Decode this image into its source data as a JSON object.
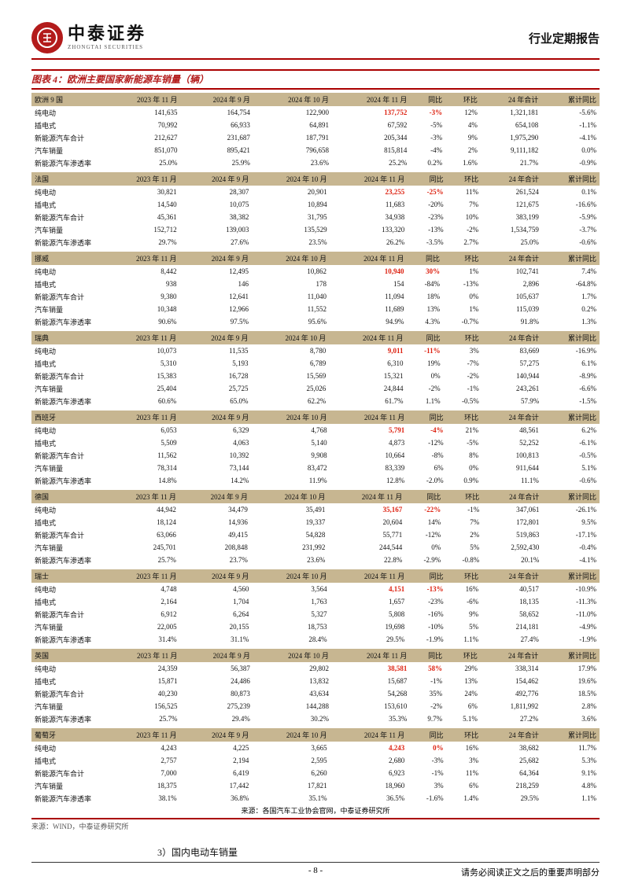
{
  "header": {
    "logo_cn": "中泰证券",
    "logo_en": "ZHONGTAI SECURITIES",
    "report_type": "行业定期报告"
  },
  "chart_title": "图表 4：欧洲主要国家新能源车销量（辆）",
  "columns_suffix": [
    "",
    "2023 年 11 月",
    "2024 年 9 月",
    "2024 年 10 月",
    "2024 年 11 月",
    "同比",
    "环比",
    "24 年合计",
    "累计同比"
  ],
  "row_labels": [
    "纯电动",
    "插电式",
    "新能源汽车合计",
    "汽车销量",
    "新能源汽车渗透率"
  ],
  "tables": [
    {
      "name": "欧洲 9 国",
      "rows": [
        [
          "141,635",
          "164,754",
          "122,900",
          {
            "v": "137,752",
            "c": "red"
          },
          {
            "v": "-3%",
            "c": "red"
          },
          "12%",
          "1,321,181",
          "-5.6%"
        ],
        [
          "70,992",
          "66,933",
          "64,891",
          "67,592",
          "-5%",
          "4%",
          "654,108",
          "-1.1%"
        ],
        [
          "212,627",
          "231,687",
          "187,791",
          "205,344",
          "-3%",
          "9%",
          "1,975,290",
          "-4.1%"
        ],
        [
          "851,070",
          "895,421",
          "796,658",
          "815,814",
          "-4%",
          "2%",
          "9,111,182",
          "0.0%"
        ],
        [
          "25.0%",
          "25.9%",
          "23.6%",
          "25.2%",
          "0.2%",
          "1.6%",
          "21.7%",
          "-0.9%"
        ]
      ]
    },
    {
      "name": "法国",
      "rows": [
        [
          "30,821",
          "28,307",
          "20,901",
          {
            "v": "23,255",
            "c": "red"
          },
          {
            "v": "-25%",
            "c": "red"
          },
          "11%",
          "261,524",
          "0.1%"
        ],
        [
          "14,540",
          "10,075",
          "10,894",
          "11,683",
          "-20%",
          "7%",
          "121,675",
          "-16.6%"
        ],
        [
          "45,361",
          "38,382",
          "31,795",
          "34,938",
          "-23%",
          "10%",
          "383,199",
          "-5.9%"
        ],
        [
          "152,712",
          "139,003",
          "135,529",
          "133,320",
          "-13%",
          "-2%",
          "1,534,759",
          "-3.7%"
        ],
        [
          "29.7%",
          "27.6%",
          "23.5%",
          "26.2%",
          "-3.5%",
          "2.7%",
          "25.0%",
          "-0.6%"
        ]
      ]
    },
    {
      "name": "挪威",
      "rows": [
        [
          "8,442",
          "12,495",
          "10,862",
          {
            "v": "10,940",
            "c": "red"
          },
          {
            "v": "30%",
            "c": "red"
          },
          "1%",
          "102,741",
          "7.4%"
        ],
        [
          "938",
          "146",
          "178",
          "154",
          "-84%",
          "-13%",
          "2,896",
          "-64.8%"
        ],
        [
          "9,380",
          "12,641",
          "11,040",
          "11,094",
          "18%",
          "0%",
          "105,637",
          "1.7%"
        ],
        [
          "10,348",
          "12,966",
          "11,552",
          "11,689",
          "13%",
          "1%",
          "115,039",
          "0.2%"
        ],
        [
          "90.6%",
          "97.5%",
          "95.6%",
          "94.9%",
          "4.3%",
          "-0.7%",
          "91.8%",
          "1.3%"
        ]
      ]
    },
    {
      "name": "瑞典",
      "rows": [
        [
          "10,073",
          "11,535",
          "8,780",
          {
            "v": "9,011",
            "c": "red"
          },
          {
            "v": "-11%",
            "c": "red"
          },
          "3%",
          "83,669",
          "-16.9%"
        ],
        [
          "5,310",
          "5,193",
          "6,789",
          "6,310",
          "19%",
          "-7%",
          "57,275",
          "6.1%"
        ],
        [
          "15,383",
          "16,728",
          "15,569",
          "15,321",
          "0%",
          "-2%",
          "140,944",
          "-8.9%"
        ],
        [
          "25,404",
          "25,725",
          "25,026",
          "24,844",
          "-2%",
          "-1%",
          "243,261",
          "-6.6%"
        ],
        [
          "60.6%",
          "65.0%",
          "62.2%",
          "61.7%",
          "1.1%",
          "-0.5%",
          "57.9%",
          "-1.5%"
        ]
      ]
    },
    {
      "name": "西班牙",
      "rows": [
        [
          "6,053",
          "6,329",
          "4,768",
          {
            "v": "5,791",
            "c": "red"
          },
          {
            "v": "-4%",
            "c": "red"
          },
          "21%",
          "48,561",
          "6.2%"
        ],
        [
          "5,509",
          "4,063",
          "5,140",
          "4,873",
          "-12%",
          "-5%",
          "52,252",
          "-6.1%"
        ],
        [
          "11,562",
          "10,392",
          "9,908",
          "10,664",
          "-8%",
          "8%",
          "100,813",
          "-0.5%"
        ],
        [
          "78,314",
          "73,144",
          "83,472",
          "83,339",
          "6%",
          "0%",
          "911,644",
          "5.1%"
        ],
        [
          "14.8%",
          "14.2%",
          "11.9%",
          "12.8%",
          "-2.0%",
          "0.9%",
          "11.1%",
          "-0.6%"
        ]
      ]
    },
    {
      "name": "德国",
      "rows": [
        [
          "44,942",
          "34,479",
          "35,491",
          {
            "v": "35,167",
            "c": "red"
          },
          {
            "v": "-22%",
            "c": "red"
          },
          "-1%",
          "347,061",
          "-26.1%"
        ],
        [
          "18,124",
          "14,936",
          "19,337",
          "20,604",
          "14%",
          "7%",
          "172,801",
          "9.5%"
        ],
        [
          "63,066",
          "49,415",
          "54,828",
          "55,771",
          "-12%",
          "2%",
          "519,863",
          "-17.1%"
        ],
        [
          "245,701",
          "208,848",
          "231,992",
          "244,544",
          "0%",
          "5%",
          "2,592,430",
          "-0.4%"
        ],
        [
          "25.7%",
          "23.7%",
          "23.6%",
          "22.8%",
          "-2.9%",
          "-0.8%",
          "20.1%",
          "-4.1%"
        ]
      ]
    },
    {
      "name": "瑞士",
      "rows": [
        [
          "4,748",
          "4,560",
          "3,564",
          {
            "v": "4,151",
            "c": "red"
          },
          {
            "v": "-13%",
            "c": "red"
          },
          "16%",
          "40,517",
          "-10.9%"
        ],
        [
          "2,164",
          "1,704",
          "1,763",
          "1,657",
          "-23%",
          "-6%",
          "18,135",
          "-11.3%"
        ],
        [
          "6,912",
          "6,264",
          "5,327",
          "5,808",
          "-16%",
          "9%",
          "58,652",
          "-11.0%"
        ],
        [
          "22,005",
          "20,155",
          "18,753",
          "19,698",
          "-10%",
          "5%",
          "214,181",
          "-4.9%"
        ],
        [
          "31.4%",
          "31.1%",
          "28.4%",
          "29.5%",
          "-1.9%",
          "1.1%",
          "27.4%",
          "-1.9%"
        ]
      ]
    },
    {
      "name": "英国",
      "rows": [
        [
          "24,359",
          "56,387",
          "29,802",
          {
            "v": "38,581",
            "c": "red"
          },
          {
            "v": "58%",
            "c": "red"
          },
          "29%",
          "338,314",
          "17.9%"
        ],
        [
          "15,871",
          "24,486",
          "13,832",
          "15,687",
          "-1%",
          "13%",
          "154,462",
          "19.6%"
        ],
        [
          "40,230",
          "80,873",
          "43,634",
          "54,268",
          "35%",
          "24%",
          "492,776",
          "18.5%"
        ],
        [
          "156,525",
          "275,239",
          "144,288",
          "153,610",
          "-2%",
          "6%",
          "1,811,992",
          "2.8%"
        ],
        [
          "25.7%",
          "29.4%",
          "30.2%",
          "35.3%",
          "9.7%",
          "5.1%",
          "27.2%",
          "3.6%"
        ]
      ]
    },
    {
      "name": "葡萄牙",
      "rows": [
        [
          "4,243",
          "4,225",
          "3,665",
          {
            "v": "4,243",
            "c": "red"
          },
          {
            "v": "0%",
            "c": "red"
          },
          "16%",
          "38,682",
          "11.7%"
        ],
        [
          "2,757",
          "2,194",
          "2,595",
          "2,680",
          "-3%",
          "3%",
          "25,682",
          "5.3%"
        ],
        [
          "7,000",
          "6,419",
          "6,260",
          "6,923",
          "-1%",
          "11%",
          "64,364",
          "9.1%"
        ],
        [
          "18,375",
          "17,442",
          "17,821",
          "18,960",
          "3%",
          "6%",
          "218,259",
          "4.8%"
        ],
        [
          "38.1%",
          "36.8%",
          "35.1%",
          "36.5%",
          "-1.6%",
          "1.4%",
          "29.5%",
          "1.1%"
        ]
      ]
    }
  ],
  "source_center": "来源：各国汽车工业协会官网，中泰证券研究所",
  "source_left": "来源：WIND，中泰证券研究所",
  "note": "3）国内电动车销量",
  "footer": {
    "page": "- 8 -",
    "right": "请务必阅读正文之后的重要声明部分"
  }
}
